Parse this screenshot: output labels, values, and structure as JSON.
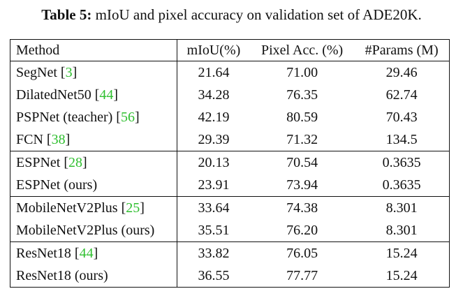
{
  "caption": {
    "label": "Table 5:",
    "text": " mIoU and pixel accuracy on validation set of ADE20K."
  },
  "table": {
    "headers": [
      "Method",
      "mIoU(%)",
      "Pixel Acc. (%)",
      "#Params (M)"
    ],
    "groups": [
      [
        {
          "method": "SegNet",
          "cite": "3",
          "miou": "21.64",
          "pixacc": "71.00",
          "params": "29.46"
        },
        {
          "method": "DilatedNet50",
          "cite": "44",
          "miou": "34.28",
          "pixacc": "76.35",
          "params": "62.74"
        },
        {
          "method": "PSPNet (teacher)",
          "cite": "56",
          "miou": "42.19",
          "pixacc": "80.59",
          "params": "70.43"
        },
        {
          "method": "FCN",
          "cite": "38",
          "miou": "29.39",
          "pixacc": "71.32",
          "params": "134.5"
        }
      ],
      [
        {
          "method": "ESPNet",
          "cite": "28",
          "miou": "20.13",
          "pixacc": "70.54",
          "params": "0.3635"
        },
        {
          "method": "ESPNet (ours)",
          "cite": "",
          "miou": "23.91",
          "pixacc": "73.94",
          "params": "0.3635"
        }
      ],
      [
        {
          "method": "MobileNetV2Plus",
          "cite": "25",
          "miou": "33.64",
          "pixacc": "74.38",
          "params": "8.301"
        },
        {
          "method": "MobileNetV2Plus (ours)",
          "cite": "",
          "miou": "35.51",
          "pixacc": "76.20",
          "params": "8.301"
        }
      ],
      [
        {
          "method": "ResNet18",
          "cite": "44",
          "miou": "33.82",
          "pixacc": "76.05",
          "params": "15.24"
        },
        {
          "method": "ResNet18 (ours)",
          "cite": "",
          "miou": "36.55",
          "pixacc": "77.77",
          "params": "15.24"
        }
      ]
    ]
  },
  "colors": {
    "citation": "#2fbf2f",
    "text": "#111111"
  }
}
